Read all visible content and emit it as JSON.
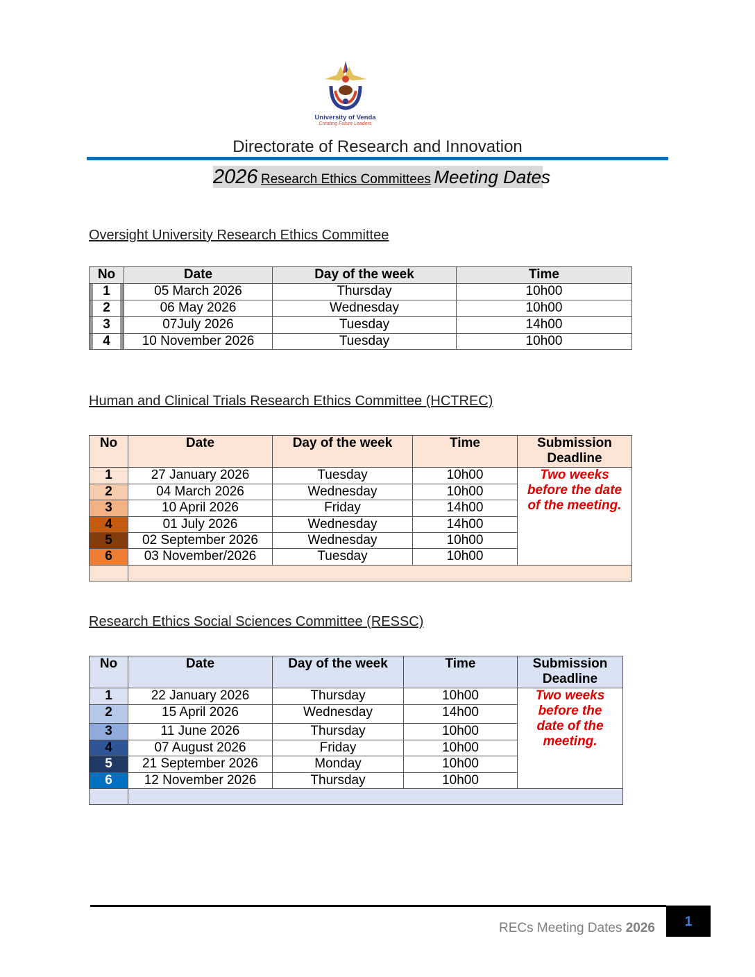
{
  "header": {
    "logo_text": "University of Venda",
    "logo_tagline": "Creating Future Leaders",
    "directorate": "Directorate of Research and Innovation",
    "subtitle_year": "2026",
    "subtitle_middle": "Research Ethics Committees",
    "subtitle_end": "Meeting Dates",
    "accent_color": "#0b6fc4"
  },
  "tables": [
    {
      "title": "Oversight University Research Ethics Committee",
      "headers": [
        "No",
        "Date",
        "Day of the week",
        "Time"
      ],
      "header_bg": "#e6e6e6",
      "no_colors": [
        "#ffffff",
        "#ffffff",
        "#ffffff",
        "#ffffff"
      ],
      "rows": [
        [
          "1",
          "05 March 2026",
          "Thursday",
          "10h00"
        ],
        [
          "2",
          "06 May 2026",
          "Wednesday",
          "10h00"
        ],
        [
          "3",
          "07July 2026",
          "Tuesday",
          "14h00"
        ],
        [
          "4",
          "10 November 2026",
          "Tuesday",
          "10h00"
        ]
      ]
    },
    {
      "title": "Human and Clinical Trials Research Ethics Committee (HCTREC)",
      "headers": [
        "No",
        "Date",
        "Day of the week",
        "Time",
        "Submission Deadline"
      ],
      "header_bg": "#fbe3d6",
      "no_colors": [
        "#fbe3d6",
        "#f8cbad",
        "#f4b183",
        "#c55a11",
        "#843c0c",
        "#ed7d31"
      ],
      "deadline": "Two weeks before the date of the meeting.",
      "rows": [
        [
          "1",
          "27 January 2026",
          "Tuesday",
          "10h00"
        ],
        [
          "2",
          "04 March 2026",
          "Wednesday",
          "10h00"
        ],
        [
          "3",
          "10 April 2026",
          "Friday",
          "14h00"
        ],
        [
          "4",
          "01 July 2026",
          "Wednesday",
          "14h00"
        ],
        [
          "5",
          "02 September 2026",
          "Wednesday",
          "10h00"
        ],
        [
          "6",
          "03 November/2026",
          "Tuesday",
          "10h00"
        ]
      ]
    },
    {
      "title": "Research Ethics Social Sciences Committee (RESSC)",
      "headers": [
        "No",
        "Date",
        "Day of the week",
        "Time",
        "Submission Deadline"
      ],
      "header_bg": "#dae3f3",
      "no_colors": [
        "#dae3f3",
        "#b4c7e7",
        "#8faadc",
        "#2f5597",
        "#1f3864",
        "#0070c0"
      ],
      "deadline": "Two weeks before the date of the meeting.",
      "rows": [
        [
          "1",
          "22 January 2026",
          "Thursday",
          "10h00"
        ],
        [
          "2",
          "15 April 2026",
          "Wednesday",
          "14h00"
        ],
        [
          "3",
          "11 June 2026",
          "Thursday",
          "10h00"
        ],
        [
          "4",
          "07 August 2026",
          "Friday",
          "10h00"
        ],
        [
          "5",
          "21 September 2026",
          "Monday",
          "10h00"
        ],
        [
          "6",
          "12 November 2026",
          "Thursday",
          "10h00"
        ]
      ]
    }
  ],
  "footer": {
    "label": "RECs Meeting Dates",
    "year": "2026",
    "page": "1"
  }
}
